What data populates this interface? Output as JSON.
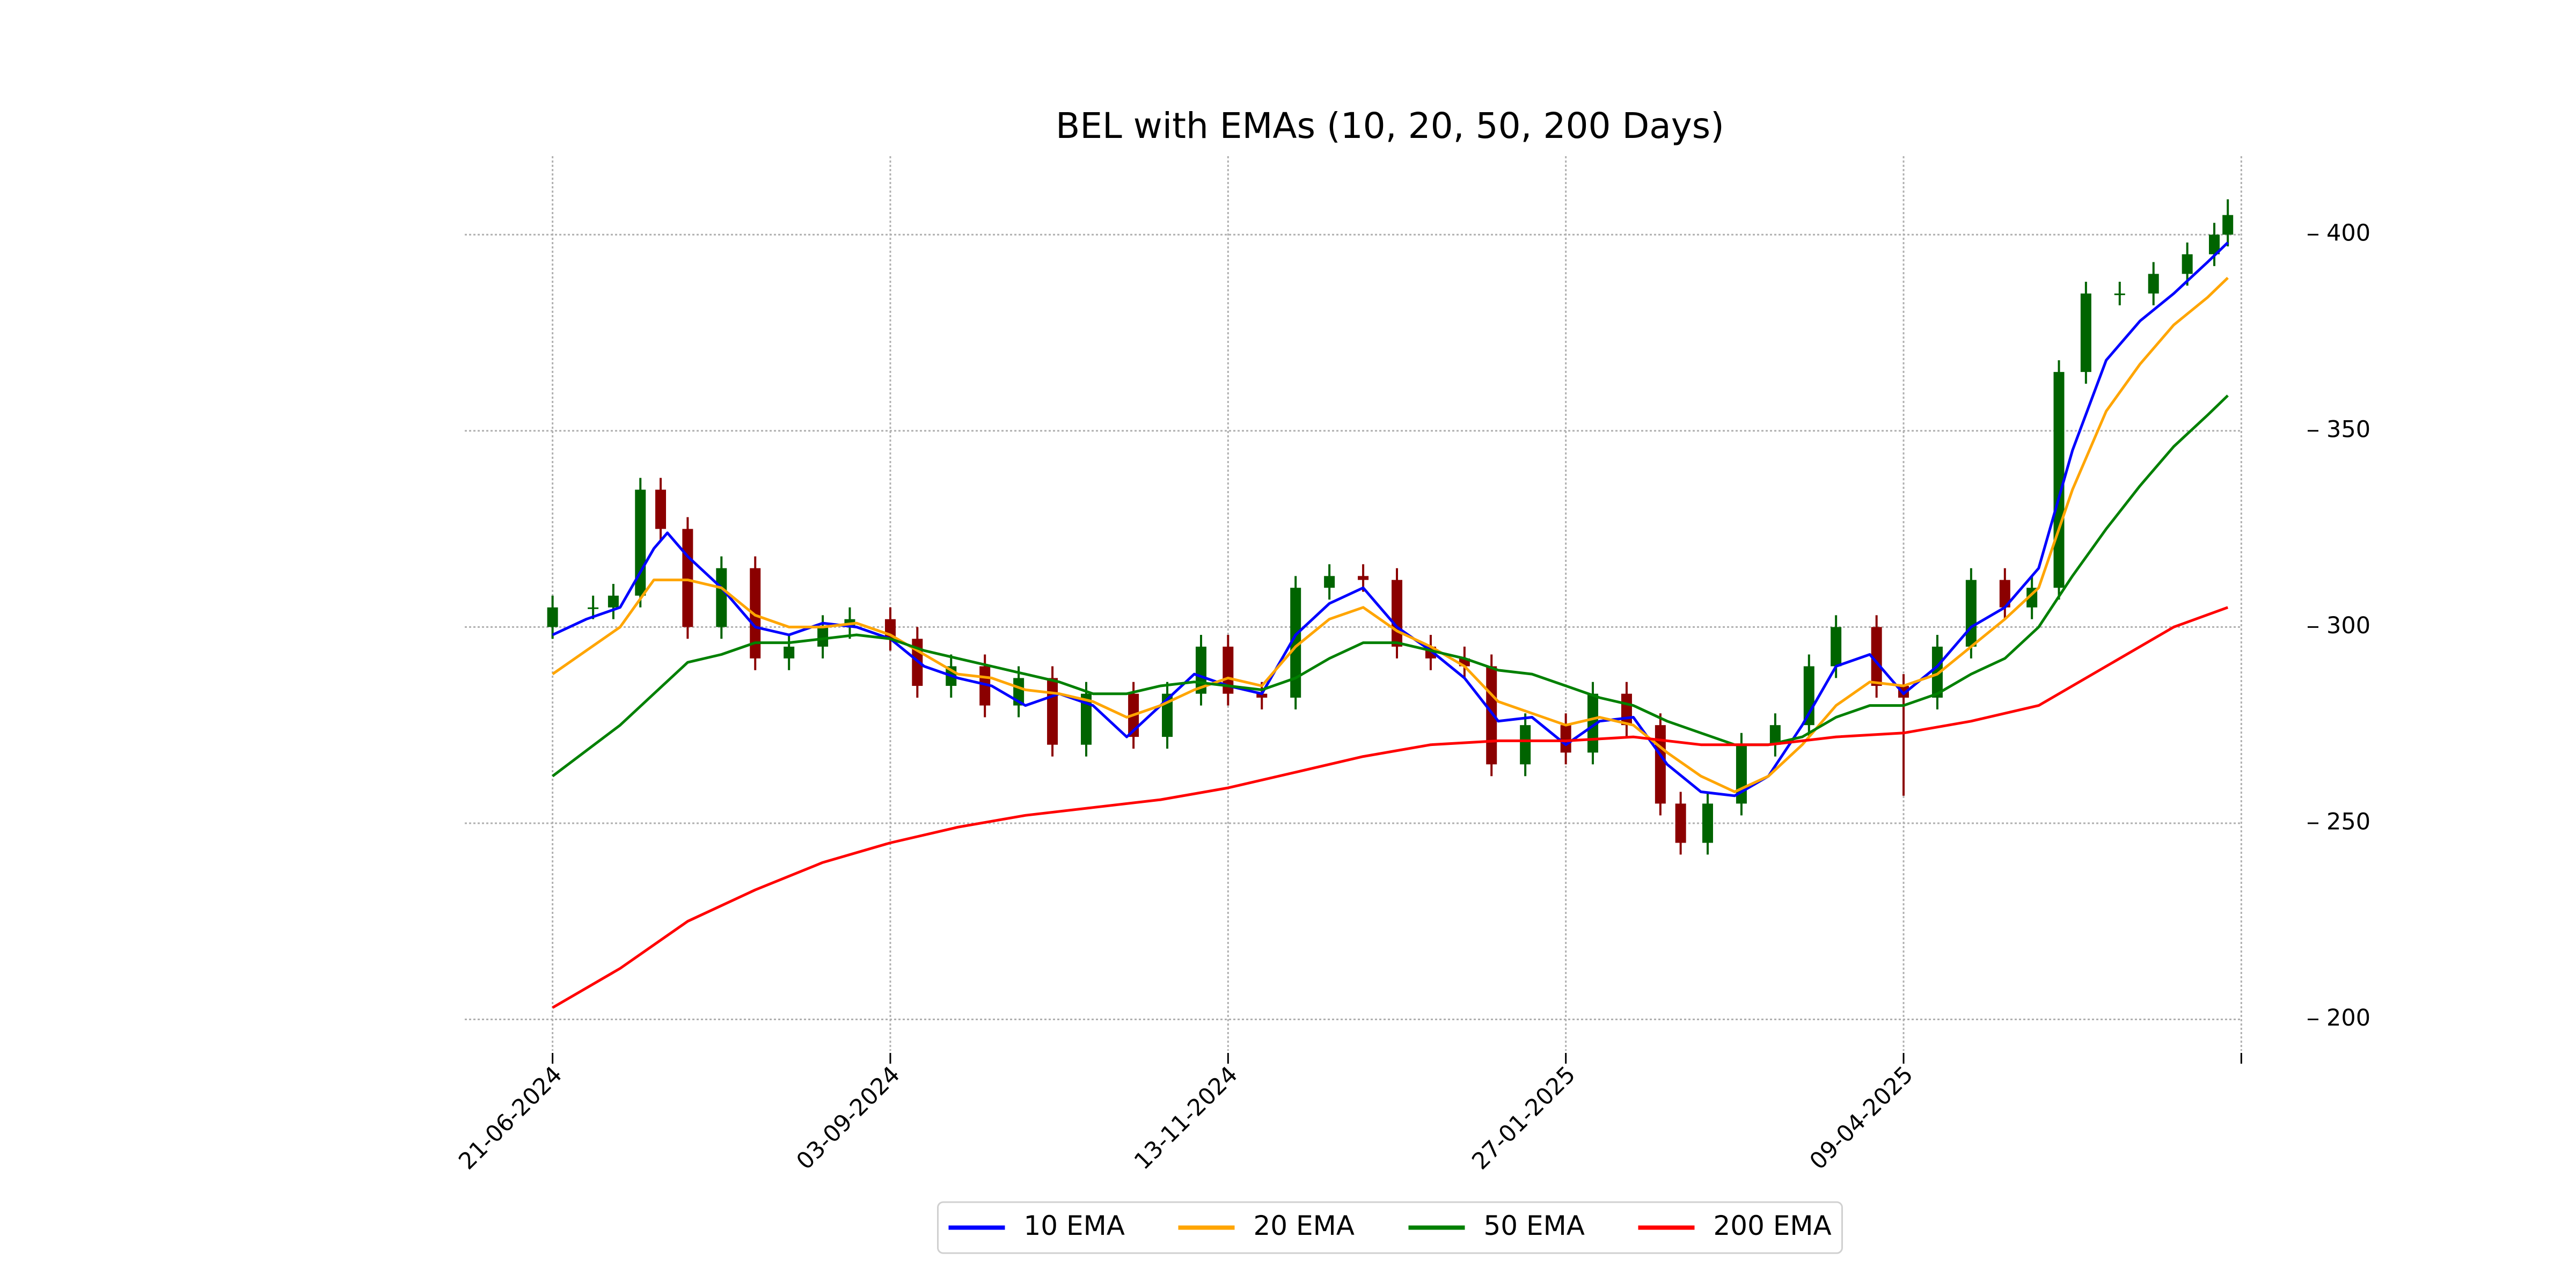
{
  "chart_data": {
    "type": "candlestick",
    "title": "BEL with EMAs (10, 20, 50, 200 Days)",
    "xlim": [
      -13,
      263
    ],
    "xticks": [
      {
        "value": 0,
        "label": "21-06-2024"
      },
      {
        "value": 50,
        "label": "03-09-2024"
      },
      {
        "value": 100,
        "label": "13-11-2024"
      },
      {
        "value": 150,
        "label": "27-01-2025"
      },
      {
        "value": 200,
        "label": "09-04-2025"
      },
      {
        "value": 250,
        "label": null
      }
    ],
    "ylim": [
      192,
      420
    ],
    "yticks": [
      200,
      250,
      300,
      350,
      400
    ],
    "grid": true,
    "legend": "lower center",
    "up_color": "#006400",
    "down_color": "#8b0000",
    "candles": {
      "x": [
        0,
        6,
        9,
        13,
        16,
        20,
        25,
        30,
        35,
        40,
        44,
        50,
        54,
        59,
        64,
        69,
        74,
        79,
        86,
        91,
        96,
        100,
        105,
        110,
        115,
        120,
        125,
        130,
        135,
        139,
        144,
        150,
        154,
        159,
        164,
        167,
        171,
        176,
        181,
        186,
        190,
        196,
        200,
        205,
        210,
        215,
        219,
        223,
        227,
        232,
        237,
        242,
        246,
        248
      ],
      "open": [
        300,
        305,
        305,
        308,
        335,
        325,
        300,
        315,
        292,
        295,
        300,
        302,
        297,
        285,
        290,
        280,
        287,
        270,
        283,
        272,
        283,
        295,
        283,
        282,
        310,
        313,
        312,
        295,
        292,
        290,
        265,
        275,
        268,
        283,
        275,
        255,
        245,
        255,
        270,
        275,
        290,
        300,
        285,
        282,
        295,
        312,
        305,
        310,
        365,
        385,
        385,
        390,
        395,
        400
      ],
      "high": [
        308,
        308,
        311,
        338,
        338,
        328,
        318,
        318,
        298,
        303,
        305,
        305,
        300,
        293,
        293,
        290,
        290,
        286,
        286,
        286,
        298,
        298,
        286,
        313,
        316,
        316,
        315,
        298,
        295,
        293,
        278,
        278,
        286,
        286,
        278,
        258,
        258,
        273,
        278,
        293,
        303,
        303,
        288,
        298,
        315,
        315,
        313,
        368,
        388,
        388,
        393,
        398,
        403,
        409
      ],
      "low": [
        297,
        302,
        302,
        305,
        322,
        297,
        297,
        289,
        289,
        292,
        297,
        294,
        282,
        282,
        277,
        277,
        267,
        267,
        269,
        269,
        280,
        280,
        279,
        279,
        307,
        309,
        292,
        289,
        287,
        262,
        262,
        265,
        265,
        272,
        252,
        242,
        242,
        252,
        267,
        272,
        287,
        282,
        257,
        279,
        292,
        302,
        302,
        307,
        362,
        382,
        382,
        387,
        392,
        397
      ],
      "close": [
        305,
        305,
        308,
        335,
        325,
        300,
        315,
        292,
        295,
        300,
        302,
        297,
        285,
        290,
        280,
        287,
        270,
        283,
        272,
        283,
        295,
        283,
        282,
        310,
        313,
        312,
        295,
        292,
        290,
        265,
        275,
        268,
        283,
        275,
        255,
        245,
        255,
        270,
        275,
        290,
        300,
        285,
        282,
        295,
        312,
        305,
        310,
        365,
        385,
        385,
        390,
        395,
        400,
        405
      ]
    },
    "series": [
      {
        "name": "10 EMA",
        "color": "#0000ff",
        "x": [
          0,
          5,
          10,
          15,
          17,
          20,
          25,
          30,
          35,
          40,
          45,
          50,
          55,
          60,
          65,
          70,
          75,
          80,
          85,
          90,
          95,
          100,
          105,
          110,
          115,
          120,
          125,
          130,
          135,
          140,
          145,
          150,
          155,
          160,
          165,
          170,
          175,
          180,
          185,
          190,
          195,
          200,
          205,
          210,
          215,
          220,
          225,
          230,
          235,
          240,
          245,
          248
        ],
        "values": [
          298,
          302,
          305,
          320,
          324,
          318,
          310,
          300,
          298,
          301,
          300,
          297,
          290,
          287,
          285,
          280,
          283,
          280,
          272,
          280,
          288,
          285,
          283,
          298,
          306,
          310,
          300,
          294,
          287,
          276,
          277,
          270,
          276,
          277,
          265,
          258,
          257,
          262,
          275,
          290,
          293,
          283,
          290,
          300,
          305,
          315,
          345,
          368,
          378,
          385,
          393,
          398
        ]
      },
      {
        "name": "20 EMA",
        "color": "#ffa500",
        "x": [
          0,
          5,
          10,
          15,
          20,
          25,
          30,
          35,
          40,
          45,
          50,
          55,
          60,
          65,
          70,
          75,
          80,
          85,
          90,
          95,
          100,
          105,
          110,
          115,
          120,
          125,
          130,
          135,
          140,
          145,
          150,
          155,
          160,
          165,
          170,
          175,
          180,
          185,
          190,
          195,
          200,
          205,
          210,
          215,
          220,
          225,
          230,
          235,
          240,
          245,
          248
        ],
        "values": [
          288,
          294,
          300,
          312,
          312,
          310,
          303,
          300,
          300,
          301,
          298,
          293,
          288,
          287,
          284,
          283,
          281,
          277,
          280,
          284,
          287,
          285,
          295,
          302,
          305,
          299,
          295,
          290,
          281,
          278,
          275,
          277,
          275,
          268,
          262,
          258,
          262,
          270,
          280,
          286,
          285,
          288,
          295,
          302,
          310,
          335,
          355,
          367,
          377,
          384,
          389
        ]
      },
      {
        "name": "50 EMA",
        "color": "#008000",
        "x": [
          0,
          10,
          15,
          20,
          25,
          30,
          35,
          40,
          45,
          50,
          55,
          60,
          65,
          70,
          75,
          80,
          85,
          90,
          95,
          100,
          105,
          110,
          115,
          120,
          125,
          130,
          135,
          140,
          145,
          150,
          155,
          160,
          165,
          170,
          175,
          180,
          185,
          190,
          195,
          200,
          205,
          210,
          215,
          220,
          225,
          230,
          235,
          240,
          245,
          248
        ],
        "values": [
          262,
          275,
          283,
          291,
          293,
          296,
          296,
          297,
          298,
          297,
          294,
          292,
          290,
          288,
          286,
          283,
          283,
          285,
          286,
          285,
          284,
          287,
          292,
          296,
          296,
          294,
          292,
          289,
          288,
          285,
          282,
          280,
          276,
          273,
          270,
          270,
          272,
          277,
          280,
          280,
          283,
          288,
          292,
          300,
          313,
          325,
          336,
          346,
          354,
          359
        ]
      },
      {
        "name": "200 EMA",
        "color": "#ff0000",
        "x": [
          0,
          10,
          20,
          30,
          40,
          50,
          60,
          70,
          80,
          90,
          100,
          110,
          120,
          130,
          140,
          150,
          160,
          170,
          180,
          190,
          200,
          210,
          220,
          230,
          240,
          248
        ],
        "values": [
          203,
          213,
          225,
          233,
          240,
          245,
          249,
          252,
          254,
          256,
          259,
          263,
          267,
          270,
          271,
          271,
          272,
          270,
          270,
          272,
          273,
          276,
          280,
          290,
          300,
          305
        ]
      }
    ]
  }
}
